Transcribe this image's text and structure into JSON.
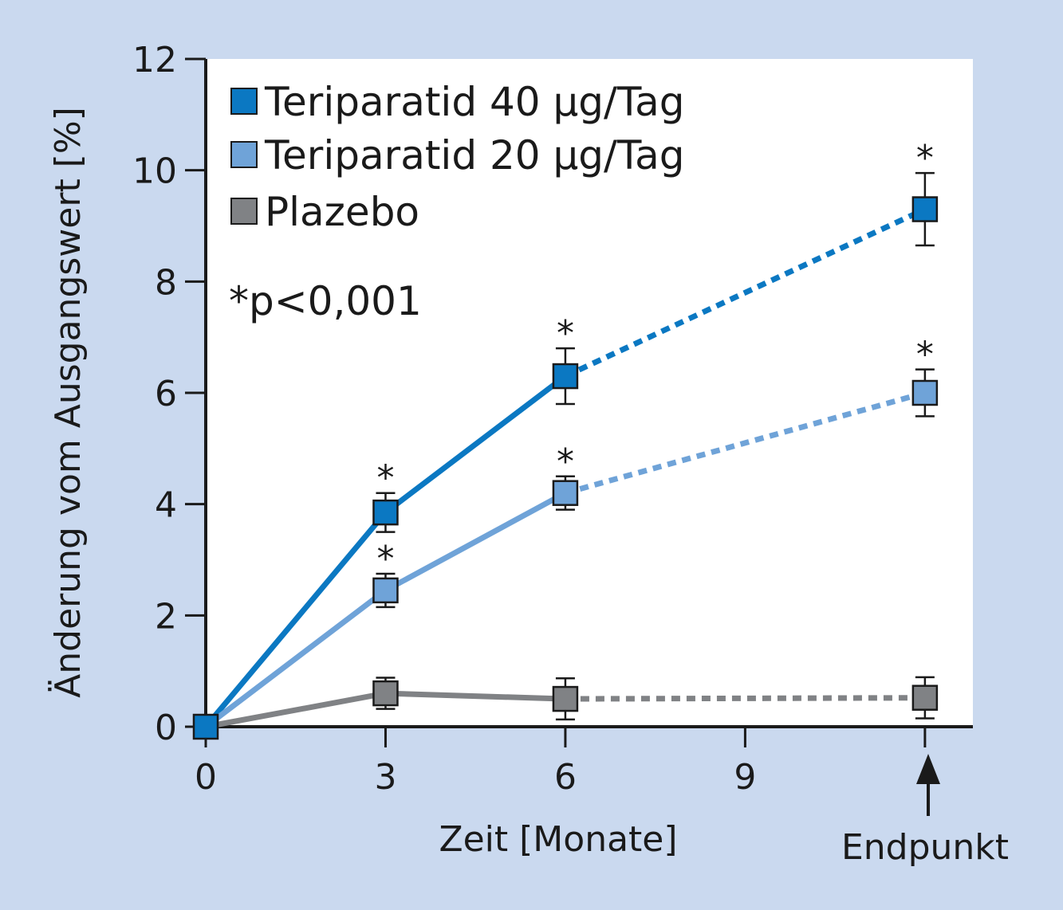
{
  "colors": {
    "frame": "#cad9ef",
    "plot_background": "#ffffff",
    "axis": "#1a1a1a",
    "series": [
      "#0b78c2",
      "#6fa3d8",
      "#808285"
    ]
  },
  "legend": {
    "items": [
      {
        "label": "Teriparatid 40 µg/Tag",
        "color": "#0b78c2"
      },
      {
        "label": "Teriparatid 20 µg/Tag",
        "color": "#6fa3d8"
      },
      {
        "label": "Plazebo",
        "color": "#808285"
      }
    ]
  },
  "annotation": "*p<0,001",
  "endpoint_label": "Endpunkt",
  "chart_data": {
    "type": "line",
    "title": "",
    "xlabel": "Zeit [Monate]",
    "ylabel": "Änderung vom Ausgangswert [%]",
    "xlim": [
      0,
      12.8
    ],
    "ylim": [
      0,
      12
    ],
    "x_ticks": [
      0,
      3,
      6,
      9
    ],
    "x_tick_labels": [
      "0",
      "3",
      "6",
      "9"
    ],
    "y_ticks": [
      0,
      2,
      4,
      6,
      8,
      10,
      12
    ],
    "y_tick_labels": [
      "0",
      "2",
      "4",
      "6",
      "8",
      "10",
      "12"
    ],
    "endpoint_x": 12,
    "endpoint_label": "Endpunkt",
    "significance_marker": "*",
    "grid": false,
    "legend_position": "top-left",
    "series": [
      {
        "name": "Teriparatid 40 µg/Tag",
        "color": "#0b78c2",
        "points": [
          {
            "x": 0,
            "y": 0,
            "err": 0,
            "sig": false
          },
          {
            "x": 3,
            "y": 3.85,
            "err": 0.35,
            "sig": true
          },
          {
            "x": 6,
            "y": 6.3,
            "err": 0.5,
            "sig": true
          },
          {
            "x": 12,
            "y": 9.3,
            "err": 0.65,
            "sig": true
          }
        ]
      },
      {
        "name": "Teriparatid 20 µg/Tag",
        "color": "#6fa3d8",
        "points": [
          {
            "x": 0,
            "y": 0,
            "err": 0,
            "sig": false
          },
          {
            "x": 3,
            "y": 2.45,
            "err": 0.3,
            "sig": true
          },
          {
            "x": 6,
            "y": 4.2,
            "err": 0.3,
            "sig": true
          },
          {
            "x": 12,
            "y": 6.0,
            "err": 0.42,
            "sig": true
          }
        ]
      },
      {
        "name": "Plazebo",
        "color": "#808285",
        "points": [
          {
            "x": 0,
            "y": 0,
            "err": 0,
            "sig": false
          },
          {
            "x": 3,
            "y": 0.6,
            "err": 0.28,
            "sig": false
          },
          {
            "x": 6,
            "y": 0.5,
            "err": 0.37,
            "sig": false
          },
          {
            "x": 12,
            "y": 0.52,
            "err": 0.37,
            "sig": false
          }
        ]
      }
    ]
  }
}
